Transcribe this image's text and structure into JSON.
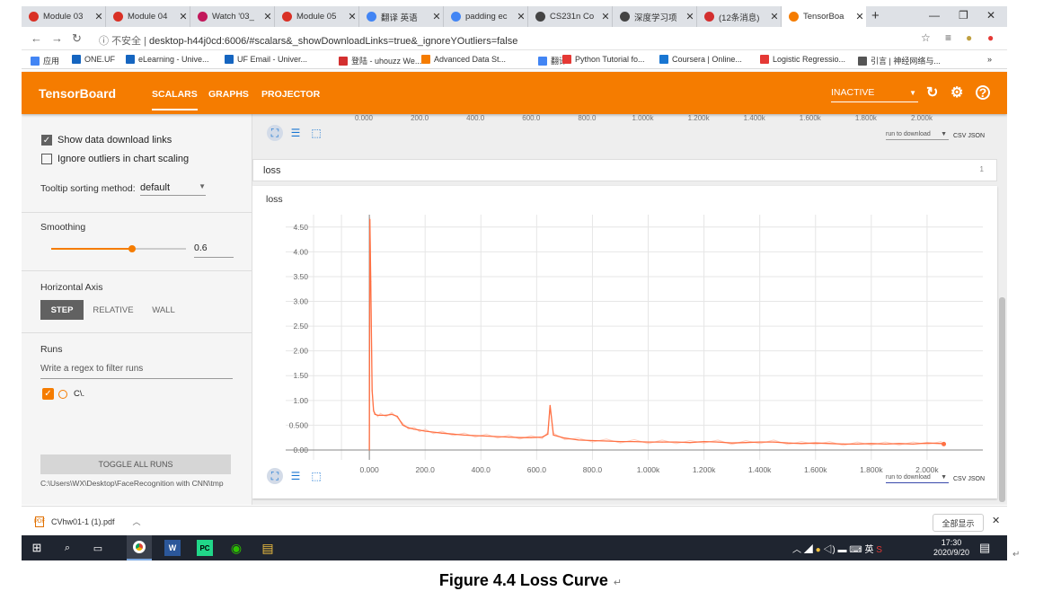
{
  "browser": {
    "tabs": [
      {
        "title": "Module 03",
        "icon_color": "#d93025"
      },
      {
        "title": "Module 04",
        "icon_color": "#d93025"
      },
      {
        "title": "Watch '03_",
        "icon_color": "#c2185b"
      },
      {
        "title": "Module 05",
        "icon_color": "#d93025"
      },
      {
        "title": "翻译 英语",
        "icon_color": "#4285f4"
      },
      {
        "title": "padding ec",
        "icon_color": "#4285f4"
      },
      {
        "title": "CS231n Co",
        "icon_color": "#444444"
      },
      {
        "title": "深度学习项",
        "icon_color": "#444444"
      },
      {
        "title": "(12条消息)",
        "icon_color": "#d32f2f"
      },
      {
        "title": "TensorBoa",
        "icon_color": "#f57c00"
      }
    ],
    "url_prefix": "不安全",
    "url": "desktop-h44j0cd:6006/#scalars&_showDownloadLinks=true&_ignoreYOutliers=false",
    "bookmarks": [
      {
        "label": "应用",
        "color": "#4285f4"
      },
      {
        "label": "ONE.UF",
        "color": "#1565c0"
      },
      {
        "label": "eLearning - Unive...",
        "color": "#1565c0"
      },
      {
        "label": "UF Email - Univer...",
        "color": "#1565c0"
      },
      {
        "label": "登陆 - uhouzz We...",
        "color": "#d32f2f"
      },
      {
        "label": "Advanced Data St...",
        "color": "#f57c00"
      },
      {
        "label": "翻译",
        "color": "#4285f4"
      },
      {
        "label": "Python Tutorial fo...",
        "color": "#e53935"
      },
      {
        "label": "Coursera | Online...",
        "color": "#1976d2"
      },
      {
        "label": "Logistic Regressio...",
        "color": "#e53935"
      },
      {
        "label": "引言 | 神经网络与...",
        "color": "#555555"
      }
    ],
    "bookmarks_more": "»"
  },
  "tensorboard": {
    "logo": "TensorBoard",
    "nav": [
      "SCALARS",
      "GRAPHS",
      "PROJECTOR"
    ],
    "status": "INACTIVE",
    "brand_color": "#f57c00"
  },
  "sidebar": {
    "show_download_links": "Show data download links",
    "ignore_outliers": "Ignore outliers in chart scaling",
    "tooltip_label": "Tooltip sorting method:",
    "tooltip_value": "default",
    "smoothing_label": "Smoothing",
    "smoothing_value": "0.6",
    "smoothing_fraction": 0.6,
    "horizontal_axis_label": "Horizontal Axis",
    "axis_step": "STEP",
    "axis_relative": "RELATIVE",
    "axis_wall": "WALL",
    "runs_label": "Runs",
    "runs_filter_placeholder": "Write a regex to filter runs",
    "run_name": "C\\.",
    "toggle_all": "TOGGLE ALL RUNS",
    "logdir": "C:\\Users\\WX\\Desktop\\FaceRecognition with CNN\\tmp"
  },
  "main": {
    "top_ticks": [
      "0.000",
      "200.0",
      "400.0",
      "600.0",
      "800.0",
      "1.000k",
      "1.200k",
      "1.400k",
      "1.600k",
      "1.800k",
      "2.000k"
    ],
    "run_to_download": "run to download",
    "formats": "CSV JSON",
    "group_name": "loss",
    "group_count": "1",
    "card_title": "loss"
  },
  "chart_data": {
    "type": "line",
    "title": "loss",
    "x_tick_labels": [
      "0.000",
      "200.0",
      "400.0",
      "600.0",
      "800.0",
      "1.000k",
      "1.200k",
      "1.400k",
      "1.600k",
      "1.800k",
      "2.000k"
    ],
    "y_tick_labels": [
      "0.00",
      "0.500",
      "1.00",
      "1.50",
      "2.00",
      "2.50",
      "3.00",
      "3.50",
      "4.00",
      "4.50"
    ],
    "xlim": [
      -300,
      2200
    ],
    "ylim": [
      -0.2,
      4.75
    ],
    "grid": true,
    "series": [
      {
        "name": "C\\.",
        "color": "#ff7043",
        "x": [
          0,
          2,
          5,
          10,
          15,
          20,
          30,
          40,
          60,
          80,
          100,
          120,
          140,
          160,
          180,
          200,
          230,
          260,
          300,
          340,
          380,
          420,
          460,
          500,
          540,
          580,
          620,
          640,
          648,
          660,
          700,
          750,
          800,
          850,
          900,
          950,
          1000,
          1050,
          1100,
          1150,
          1200,
          1250,
          1300,
          1350,
          1400,
          1450,
          1500,
          1550,
          1600,
          1650,
          1700,
          1750,
          1800,
          1850,
          1900,
          1950,
          2000,
          2050,
          2060
        ],
        "y": [
          0.0,
          4.65,
          3.4,
          1.2,
          0.8,
          0.72,
          0.7,
          0.7,
          0.7,
          0.72,
          0.68,
          0.5,
          0.45,
          0.42,
          0.4,
          0.38,
          0.36,
          0.34,
          0.32,
          0.3,
          0.29,
          0.28,
          0.27,
          0.26,
          0.25,
          0.25,
          0.26,
          0.32,
          0.9,
          0.3,
          0.24,
          0.2,
          0.19,
          0.18,
          0.17,
          0.17,
          0.16,
          0.16,
          0.16,
          0.15,
          0.17,
          0.16,
          0.14,
          0.15,
          0.16,
          0.16,
          0.14,
          0.13,
          0.14,
          0.13,
          0.12,
          0.12,
          0.13,
          0.12,
          0.13,
          0.12,
          0.14,
          0.13,
          0.12
        ]
      }
    ]
  },
  "downloads": {
    "file": "CVhw01-1 (1).pdf",
    "show_all": "全部显示"
  },
  "taskbar": {
    "ime": "英",
    "time": "17:30",
    "date": "2020/9/20"
  },
  "caption": "Figure 4.4 Loss Curve"
}
